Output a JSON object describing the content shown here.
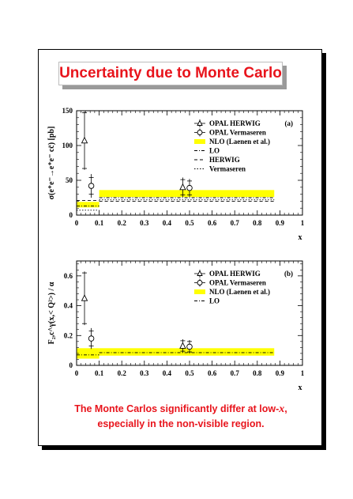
{
  "title": "Uncertainty due to Monte Carlo",
  "footer": {
    "line1_prefix": "The Monte Carlos significantly differ at low-",
    "line1_var": "x",
    "line1_suffix": ",",
    "line2": "especially in the non-visible region."
  },
  "colors": {
    "title": "#e8141c",
    "band": "#ffff00",
    "frame": "#000000"
  },
  "chart_data": [
    {
      "type": "scatter",
      "panel_label": "(a)",
      "ylabel": "σ(e⁺e⁻→e⁺e⁻ cc̄) [pb]",
      "xlabel": "x",
      "xlim": [
        0,
        1
      ],
      "ylim": [
        0,
        150
      ],
      "x_major_ticks": [
        0,
        0.1,
        0.2,
        0.3,
        0.4,
        0.5,
        0.6,
        0.7,
        0.8,
        0.9,
        1
      ],
      "x_tick_labels": [
        "0",
        "0.1",
        "0.2",
        "0.3",
        "0.4",
        "0.5",
        "0.6",
        "0.7",
        "0.8",
        "0.9",
        "1"
      ],
      "y_major_ticks": [
        0,
        50,
        100,
        150
      ],
      "y_tick_labels": [
        "0",
        "50",
        "100",
        "150"
      ],
      "legend_position": "top-right",
      "legend": [
        "OPAL HERWIG",
        "OPAL Vermaseren",
        "NLO (Laenen et al.)",
        "LO",
        "HERWIG",
        "Vermaseren"
      ],
      "series": [
        {
          "name": "OPAL HERWIG",
          "marker": "triangle",
          "x": [
            0.035,
            0.47
          ],
          "y": [
            107,
            40
          ],
          "yerr": [
            42,
            14
          ],
          "syserr": [
            40,
            11
          ],
          "x_range": [
            [
              0,
              0.1
            ],
            [
              0.1,
              0.875
            ]
          ]
        },
        {
          "name": "OPAL Vermaseren",
          "marker": "circle",
          "x": [
            0.065,
            0.5
          ],
          "y": [
            42,
            39
          ],
          "yerr": [
            17,
            13
          ],
          "syserr": [
            12,
            10
          ],
          "x_range": [
            [
              0,
              0.1
            ],
            [
              0.1,
              0.875
            ]
          ]
        }
      ],
      "bands": [
        {
          "name": "NLO (Laenen et al.)",
          "segments": [
            {
              "x": [
                0,
                0.1
              ],
              "lo": 11,
              "hi": 19
            },
            {
              "x": [
                0.1,
                0.875
              ],
              "lo": 26,
              "hi": 36
            }
          ]
        }
      ],
      "lines": [
        {
          "name": "LO",
          "style": "dash-dot",
          "segments": [
            {
              "x": [
                0,
                0.1
              ],
              "y": 13
            },
            {
              "x": [
                0.1,
                0.875
              ],
              "y": 25
            }
          ]
        },
        {
          "name": "HERWIG",
          "style": "dashed",
          "segments": [
            {
              "x": [
                0,
                0.1
              ],
              "y": 21
            },
            {
              "x": [
                0.1,
                0.875
              ],
              "y": 20
            }
          ]
        },
        {
          "name": "Vermaseren",
          "style": "dotted",
          "segments": [
            {
              "x": [
                0,
                0.1
              ],
              "y": 7
            },
            {
              "x": [
                0.1,
                0.875
              ],
              "y": 22
            }
          ]
        }
      ]
    },
    {
      "type": "scatter",
      "panel_label": "(b)",
      "ylabel": "F₂,c^γ(x,< Q²>) / α",
      "xlabel": "x",
      "xlim": [
        0,
        1
      ],
      "ylim": [
        0,
        0.7
      ],
      "x_major_ticks": [
        0,
        0.1,
        0.2,
        0.3,
        0.4,
        0.5,
        0.6,
        0.7,
        0.8,
        0.9,
        1
      ],
      "x_tick_labels": [
        "0",
        "0.1",
        "0.2",
        "0.3",
        "0.4",
        "0.5",
        "0.6",
        "0.7",
        "0.8",
        "0.9",
        "1"
      ],
      "y_major_ticks": [
        0,
        0.2,
        0.4,
        0.6
      ],
      "y_tick_labels": [
        "0",
        "0.2",
        "0.4",
        "0.6"
      ],
      "legend_position": "top-right",
      "legend": [
        "OPAL HERWIG",
        "OPAL Vermaseren",
        "NLO (Laenen et al.)",
        "LO"
      ],
      "series": [
        {
          "name": "OPAL HERWIG",
          "marker": "triangle",
          "x": [
            0.035,
            0.47
          ],
          "y": [
            0.45,
            0.13
          ],
          "yerr": [
            0.18,
            0.045
          ],
          "syserr": [
            0.17,
            0.035
          ],
          "x_range": [
            [
              0,
              0.1
            ],
            [
              0.1,
              0.875
            ]
          ]
        },
        {
          "name": "OPAL Vermaseren",
          "marker": "circle",
          "x": [
            0.065,
            0.5
          ],
          "y": [
            0.18,
            0.125
          ],
          "yerr": [
            0.07,
            0.045
          ],
          "syserr": [
            0.05,
            0.035
          ],
          "x_range": [
            [
              0,
              0.1
            ],
            [
              0.1,
              0.875
            ]
          ]
        }
      ],
      "bands": [
        {
          "name": "NLO (Laenen et al.)",
          "segments": [
            {
              "x": [
                0,
                0.1
              ],
              "lo": 0.045,
              "hi": 0.115
            },
            {
              "x": [
                0.1,
                0.875
              ],
              "lo": 0.065,
              "hi": 0.115
            }
          ]
        }
      ],
      "lines": [
        {
          "name": "LO",
          "style": "dash-dot",
          "segments": [
            {
              "x": [
                0,
                0.1
              ],
              "y": 0.07
            },
            {
              "x": [
                0.1,
                0.875
              ],
              "y": 0.085
            }
          ]
        }
      ]
    }
  ]
}
